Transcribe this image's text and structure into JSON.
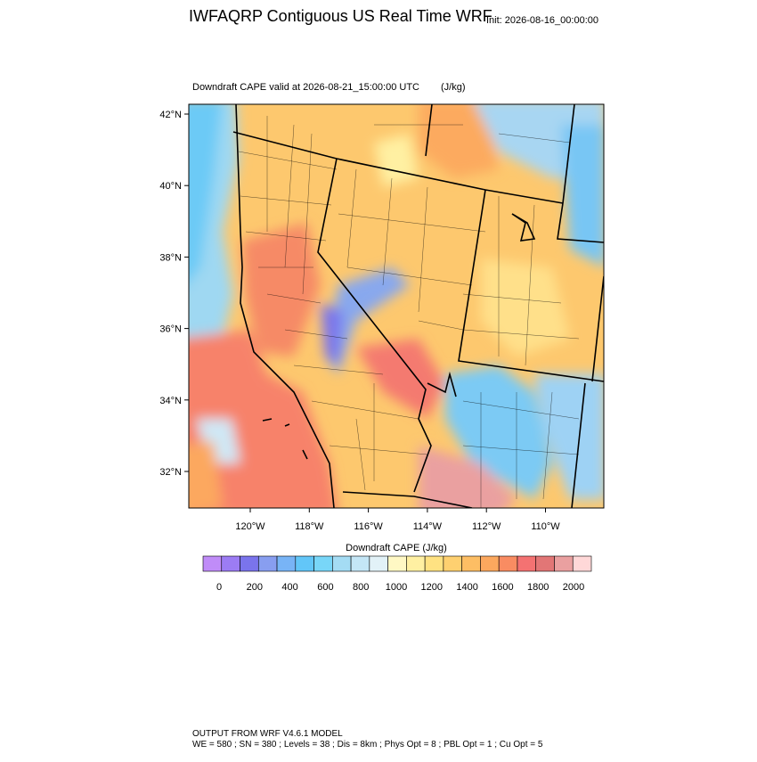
{
  "header": {
    "title": "IWFAQRP Contiguous US Real Time WRF",
    "init": "Init: 2026-08-16_00:00:00"
  },
  "map": {
    "subtitle": "Downdraft CAPE valid at 2026-08-21_15:00:00 UTC",
    "units": "(J/kg)",
    "lat_labels": [
      "42°N",
      "40°N",
      "38°N",
      "36°N",
      "34°N",
      "32°N"
    ],
    "lon_labels": [
      "120°W",
      "118°W",
      "116°W",
      "114°W",
      "112°W",
      "110°W"
    ]
  },
  "colorbar": {
    "title": "Downdraft CAPE  (J/kg)",
    "colors": [
      "#c08cf8",
      "#9c7cf4",
      "#7a74ec",
      "#889ef0",
      "#78b4f6",
      "#62c6f8",
      "#78d6f8",
      "#a4dcf4",
      "#c4e6f6",
      "#e2f2f8",
      "#fff8c4",
      "#fff0a2",
      "#ffe282",
      "#fed070",
      "#fdbe64",
      "#fca85e",
      "#f98c62",
      "#f47272",
      "#e27676",
      "#eaa0a0",
      "#ffd8d8"
    ],
    "ticks": [
      0,
      200,
      400,
      600,
      800,
      1000,
      1200,
      1400,
      1600,
      1800,
      2000
    ]
  },
  "footer": {
    "line1": "OUTPUT FROM WRF V4.6.1 MODEL",
    "line2": "WE = 580 ; SN = 380 ; Levels = 38 ; Dis = 8km ; Phys Opt = 8 ; PBL Opt = 1 ; Cu Opt = 5"
  }
}
